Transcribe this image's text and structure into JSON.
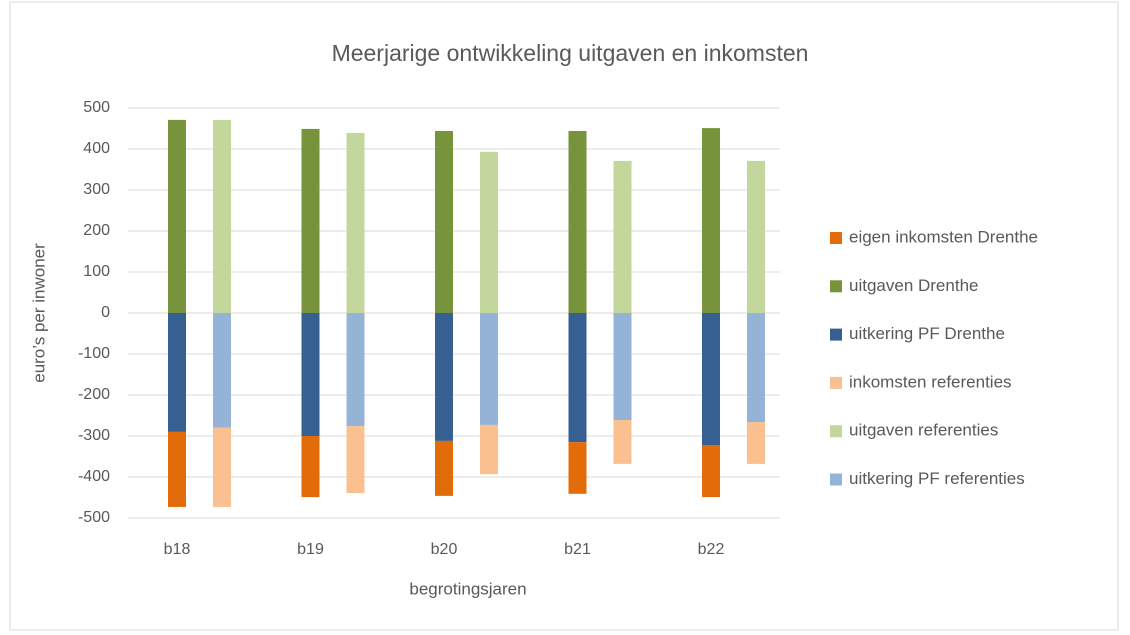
{
  "chart_data": {
    "type": "bar",
    "stacked": true,
    "title": "Meerjarige ontwikkeling uitgaven en inkomsten",
    "x_label": "begrotingsjaren",
    "y_label": "euro’s per inwoner",
    "categories": [
      "b18",
      "b19",
      "b20",
      "b21",
      "b22"
    ],
    "series": [
      {
        "name": "eigen inkomsten Drenthe",
        "color": "#e36c0a",
        "stack": 0,
        "values": [
          -183,
          -149,
          -134,
          -126,
          -127
        ]
      },
      {
        "name": "uitgaven Drenthe",
        "color": "#77933c",
        "stack": 0,
        "values": [
          471,
          449,
          444,
          444,
          451
        ]
      },
      {
        "name": "uitkering PF Drenthe",
        "color": "#366092",
        "stack": 0,
        "values": [
          -290,
          -300,
          -312,
          -315,
          -322
        ]
      },
      {
        "name": "inkomsten referenties",
        "color": "#fac090",
        "stack": 1,
        "values": [
          -193,
          -163,
          -120,
          -107,
          -102
        ]
      },
      {
        "name": "uitgaven referenties",
        "color": "#c3d69b",
        "stack": 1,
        "values": [
          471,
          439,
          393,
          371,
          371
        ]
      },
      {
        "name": "uitkering PF referenties",
        "color": "#95b3d7",
        "stack": 1,
        "values": [
          -280,
          -276,
          -273,
          -261,
          -266
        ]
      }
    ],
    "ylim": [
      -500,
      500
    ],
    "yticks": [
      -500,
      -400,
      -300,
      -200,
      -100,
      0,
      100,
      200,
      300,
      400,
      500
    ],
    "grid": true,
    "legend": "right"
  }
}
